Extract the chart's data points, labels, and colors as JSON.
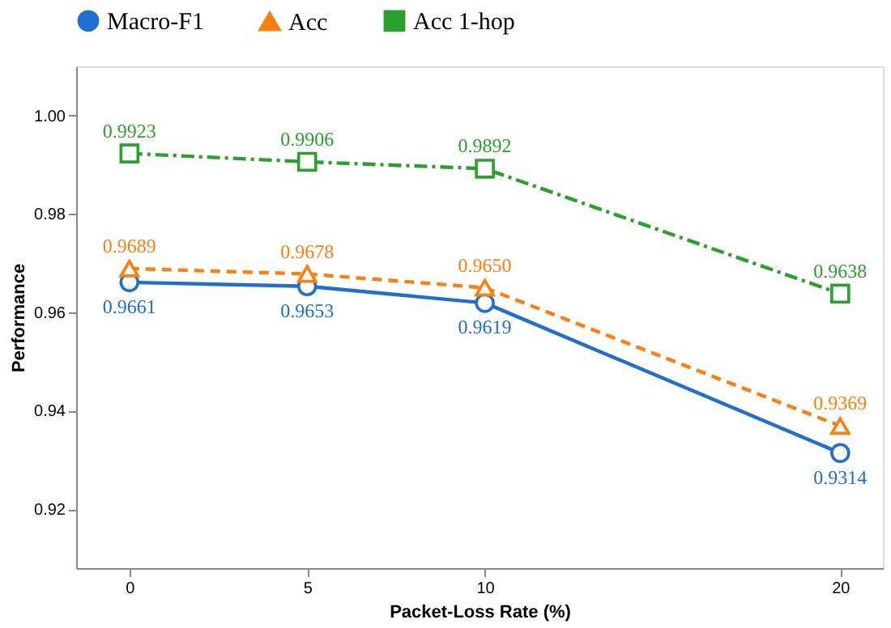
{
  "chart_data": {
    "type": "line",
    "xlabel": "Packet-Loss Rate (%)",
    "ylabel": "Performance",
    "x": [
      0,
      5,
      10,
      20
    ],
    "xlim": [
      -1.5,
      21.2
    ],
    "xticks": [
      0,
      5,
      10,
      20
    ],
    "ylim": [
      0.908,
      1.01
    ],
    "yticks": [
      0.92,
      0.94,
      0.96,
      0.98,
      {
        "value": 1.0,
        "label": "1.00"
      }
    ],
    "grid": false,
    "legend": "top",
    "data_labels": true,
    "series": [
      {
        "name": "Macro-F1",
        "color": "#1f6fd0",
        "values": [
          0.9661,
          0.9653,
          0.9619,
          0.9314
        ],
        "marker": "circle",
        "line_style": "solid"
      },
      {
        "name": "Acc",
        "color": "#ff7f0e",
        "values": [
          0.9689,
          0.9678,
          0.965,
          0.9369
        ],
        "value_labels": [
          "0.9689",
          "0.9678",
          "0.9650",
          "0.9369"
        ],
        "marker": "triangle",
        "line_style": "dashed"
      },
      {
        "name": "Acc 1-hop",
        "color": "#2ca02c",
        "values": [
          0.9923,
          0.9906,
          0.9892,
          0.9638
        ],
        "marker": "square",
        "line_style": "dashdot"
      }
    ]
  }
}
